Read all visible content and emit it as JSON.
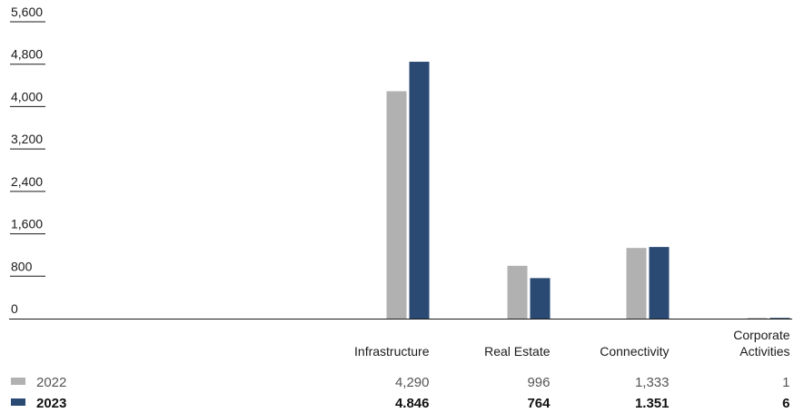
{
  "chart_data": {
    "type": "bar",
    "categories": [
      "",
      "",
      "Infrastructure",
      "Real Estate",
      "Connectivity",
      "Corporate Activities"
    ],
    "category_lines": [
      [],
      [],
      [
        "Infrastructure"
      ],
      [
        "Real Estate"
      ],
      [
        "Connectivity"
      ],
      [
        "Corporate",
        "Activities"
      ]
    ],
    "series": [
      {
        "name": "2022",
        "color": "#b1b1b1",
        "values": [
          null,
          null,
          4290,
          996,
          1333,
          1
        ],
        "labels": [
          "",
          "",
          "4,290",
          "996",
          "1,333",
          "1"
        ],
        "bold": false
      },
      {
        "name": "2023",
        "color": "#2a4a74",
        "values": [
          null,
          null,
          4846,
          764,
          1351,
          6
        ],
        "labels": [
          "",
          "",
          "4.846",
          "764",
          "1.351",
          "6"
        ],
        "bold": true
      }
    ],
    "yticks": [
      "0",
      "800",
      "1,600",
      "2,400",
      "3,200",
      "4,000",
      "4,800",
      "5,600"
    ],
    "ytick_values": [
      0,
      800,
      1600,
      2400,
      3200,
      4000,
      4800,
      5600
    ],
    "ylim": [
      0,
      5600
    ],
    "title": "",
    "xlabel": "",
    "ylabel": "",
    "legend": "table-left",
    "grid": false
  }
}
